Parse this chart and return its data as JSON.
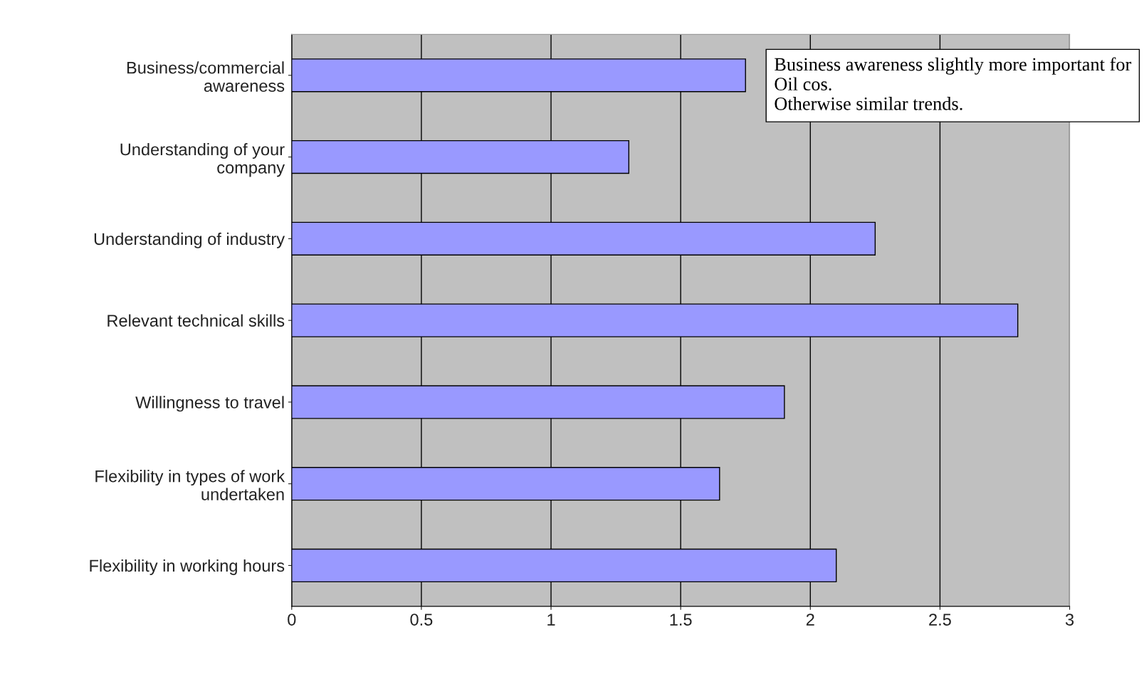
{
  "chart_data": {
    "type": "bar",
    "orientation": "horizontal",
    "categories": [
      "Business/commercial\nawareness",
      "Understanding of your\ncompany",
      "Understanding of industry",
      "Relevant technical skills",
      "Willingness to travel",
      "Flexibility in types of work\nundertaken",
      "Flexibility in working hours"
    ],
    "values": [
      1.75,
      1.3,
      2.25,
      2.8,
      1.9,
      1.65,
      2.1
    ],
    "color": "#9999ff",
    "xlim": [
      0,
      3
    ],
    "xticks": [
      0,
      0.5,
      1,
      1.5,
      2,
      2.5,
      3
    ],
    "grid": "x",
    "annotations": [
      "Business awareness slightly more important for Oil cos.",
      "Otherwise similar trends."
    ]
  }
}
